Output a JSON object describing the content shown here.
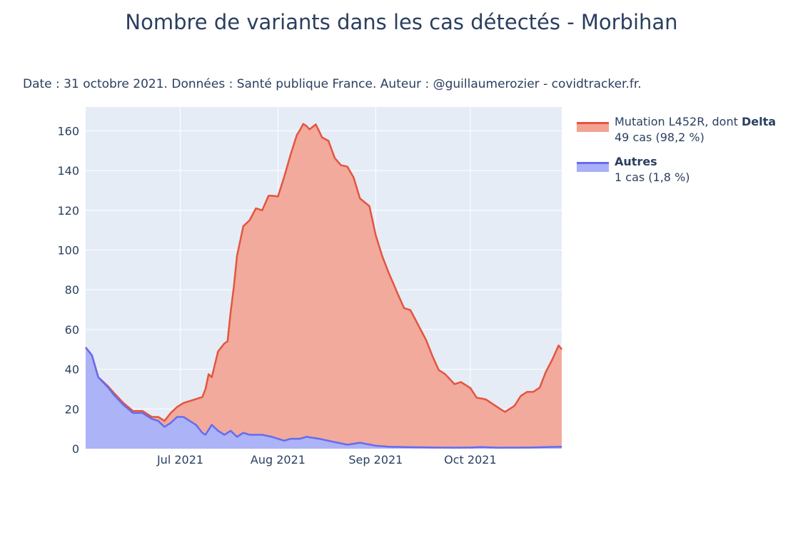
{
  "title": "Nombre de variants dans les cas détectés - Morbihan",
  "subtitle": "Date : 31 octobre 2021. Données : Santé publique France. Auteur : @guillaumerozier - covidtracker.fr.",
  "legend": [
    {
      "name_prefix": "Mutation L452R, dont ",
      "name_bold": "Delta",
      "detail": "49 cas (98,2 %)",
      "line_color": "#e4543f",
      "fill_color": "#f2a392"
    },
    {
      "name_prefix": "",
      "name_bold": "Autres",
      "detail": "1 cas (1,8 %)",
      "line_color": "#646cf0",
      "fill_color": "#a9b0f6"
    }
  ],
  "colors": {
    "plot_bg": "#e5ecf6",
    "grid": "#ffffff",
    "text": "#2a3f5f"
  },
  "chart_data": {
    "type": "area",
    "stacked": true,
    "x_start": "2021-06-01",
    "x_end": "2021-10-30",
    "xlim": [
      "2021-06-01",
      "2021-10-30"
    ],
    "ylim": [
      0,
      172
    ],
    "yticks": [
      0,
      20,
      40,
      60,
      80,
      100,
      120,
      140,
      160
    ],
    "xticks": [
      {
        "date": "2021-07-01",
        "label": "Jul 2021"
      },
      {
        "date": "2021-08-01",
        "label": "Aug 2021"
      },
      {
        "date": "2021-09-01",
        "label": "Sep 2021"
      },
      {
        "date": "2021-10-01",
        "label": "Oct 2021"
      }
    ],
    "grid": true,
    "legend_position": "right",
    "series": [
      {
        "name": "Autres",
        "keypoints": [
          [
            "2021-06-01",
            51
          ],
          [
            "2021-06-03",
            47
          ],
          [
            "2021-06-05",
            36
          ],
          [
            "2021-06-08",
            31
          ],
          [
            "2021-06-10",
            27
          ],
          [
            "2021-06-13",
            22
          ],
          [
            "2021-06-16",
            18
          ],
          [
            "2021-06-19",
            18
          ],
          [
            "2021-06-22",
            15
          ],
          [
            "2021-06-24",
            14
          ],
          [
            "2021-06-26",
            11
          ],
          [
            "2021-06-28",
            13
          ],
          [
            "2021-06-30",
            16
          ],
          [
            "2021-07-02",
            16
          ],
          [
            "2021-07-04",
            14
          ],
          [
            "2021-07-06",
            12
          ],
          [
            "2021-07-08",
            8
          ],
          [
            "2021-07-09",
            7
          ],
          [
            "2021-07-11",
            12
          ],
          [
            "2021-07-13",
            9
          ],
          [
            "2021-07-15",
            7
          ],
          [
            "2021-07-17",
            9
          ],
          [
            "2021-07-19",
            6
          ],
          [
            "2021-07-21",
            8
          ],
          [
            "2021-07-23",
            7
          ],
          [
            "2021-07-27",
            7
          ],
          [
            "2021-07-30",
            6
          ],
          [
            "2021-08-03",
            4
          ],
          [
            "2021-08-05",
            5
          ],
          [
            "2021-08-08",
            5
          ],
          [
            "2021-08-10",
            6
          ],
          [
            "2021-08-14",
            5
          ],
          [
            "2021-08-17",
            4
          ],
          [
            "2021-08-20",
            3
          ],
          [
            "2021-08-23",
            2
          ],
          [
            "2021-08-27",
            3
          ],
          [
            "2021-09-01",
            1.5
          ],
          [
            "2021-09-05",
            1
          ],
          [
            "2021-09-10",
            0.8
          ],
          [
            "2021-09-20",
            0.6
          ],
          [
            "2021-09-26",
            0.5
          ],
          [
            "2021-10-01",
            0.6
          ],
          [
            "2021-10-05",
            0.8
          ],
          [
            "2021-10-10",
            0.5
          ],
          [
            "2021-10-20",
            0.6
          ],
          [
            "2021-10-30",
            1
          ]
        ]
      },
      {
        "name": "Mutation L452R, dont Delta",
        "keypoints": [
          [
            "2021-06-01",
            0
          ],
          [
            "2021-06-05",
            0
          ],
          [
            "2021-06-10",
            1
          ],
          [
            "2021-06-15",
            1
          ],
          [
            "2021-06-19",
            1
          ],
          [
            "2021-06-22",
            1
          ],
          [
            "2021-06-24",
            2
          ],
          [
            "2021-06-26",
            3
          ],
          [
            "2021-06-28",
            5
          ],
          [
            "2021-06-30",
            5
          ],
          [
            "2021-07-02",
            7
          ],
          [
            "2021-07-04",
            10
          ],
          [
            "2021-07-06",
            13
          ],
          [
            "2021-07-08",
            18
          ],
          [
            "2021-07-10",
            28
          ],
          [
            "2021-07-11",
            24
          ],
          [
            "2021-07-13",
            40
          ],
          [
            "2021-07-15",
            46
          ],
          [
            "2021-07-16",
            46
          ],
          [
            "2021-07-18",
            74
          ],
          [
            "2021-07-19",
            91
          ],
          [
            "2021-07-21",
            104
          ],
          [
            "2021-07-23",
            108
          ],
          [
            "2021-07-25",
            114
          ],
          [
            "2021-07-27",
            113
          ],
          [
            "2021-07-29",
            121
          ],
          [
            "2021-08-01",
            122
          ],
          [
            "2021-08-03",
            133
          ],
          [
            "2021-08-05",
            143
          ],
          [
            "2021-08-07",
            153
          ],
          [
            "2021-08-09",
            158
          ],
          [
            "2021-08-11",
            155
          ],
          [
            "2021-08-13",
            158
          ],
          [
            "2021-08-15",
            152
          ],
          [
            "2021-08-17",
            151
          ],
          [
            "2021-08-19",
            143
          ],
          [
            "2021-08-21",
            140
          ],
          [
            "2021-08-23",
            140
          ],
          [
            "2021-08-25",
            134
          ],
          [
            "2021-08-27",
            123
          ],
          [
            "2021-08-30",
            120
          ],
          [
            "2021-09-01",
            106
          ],
          [
            "2021-09-03",
            96
          ],
          [
            "2021-09-05",
            88
          ],
          [
            "2021-09-08",
            77
          ],
          [
            "2021-09-10",
            70
          ],
          [
            "2021-09-12",
            69
          ],
          [
            "2021-09-14",
            63
          ],
          [
            "2021-09-17",
            54
          ],
          [
            "2021-09-19",
            46
          ],
          [
            "2021-09-21",
            39
          ],
          [
            "2021-09-23",
            37
          ],
          [
            "2021-09-26",
            32
          ],
          [
            "2021-09-28",
            33
          ],
          [
            "2021-10-01",
            30
          ],
          [
            "2021-10-03",
            25
          ],
          [
            "2021-10-06",
            24
          ],
          [
            "2021-10-08",
            22
          ],
          [
            "2021-10-10",
            20
          ],
          [
            "2021-10-12",
            18
          ],
          [
            "2021-10-15",
            21
          ],
          [
            "2021-10-17",
            26
          ],
          [
            "2021-10-19",
            28
          ],
          [
            "2021-10-21",
            28
          ],
          [
            "2021-10-23",
            30
          ],
          [
            "2021-10-25",
            38
          ],
          [
            "2021-10-27",
            44
          ],
          [
            "2021-10-29",
            51
          ],
          [
            "2021-10-30",
            49
          ]
        ]
      }
    ]
  }
}
